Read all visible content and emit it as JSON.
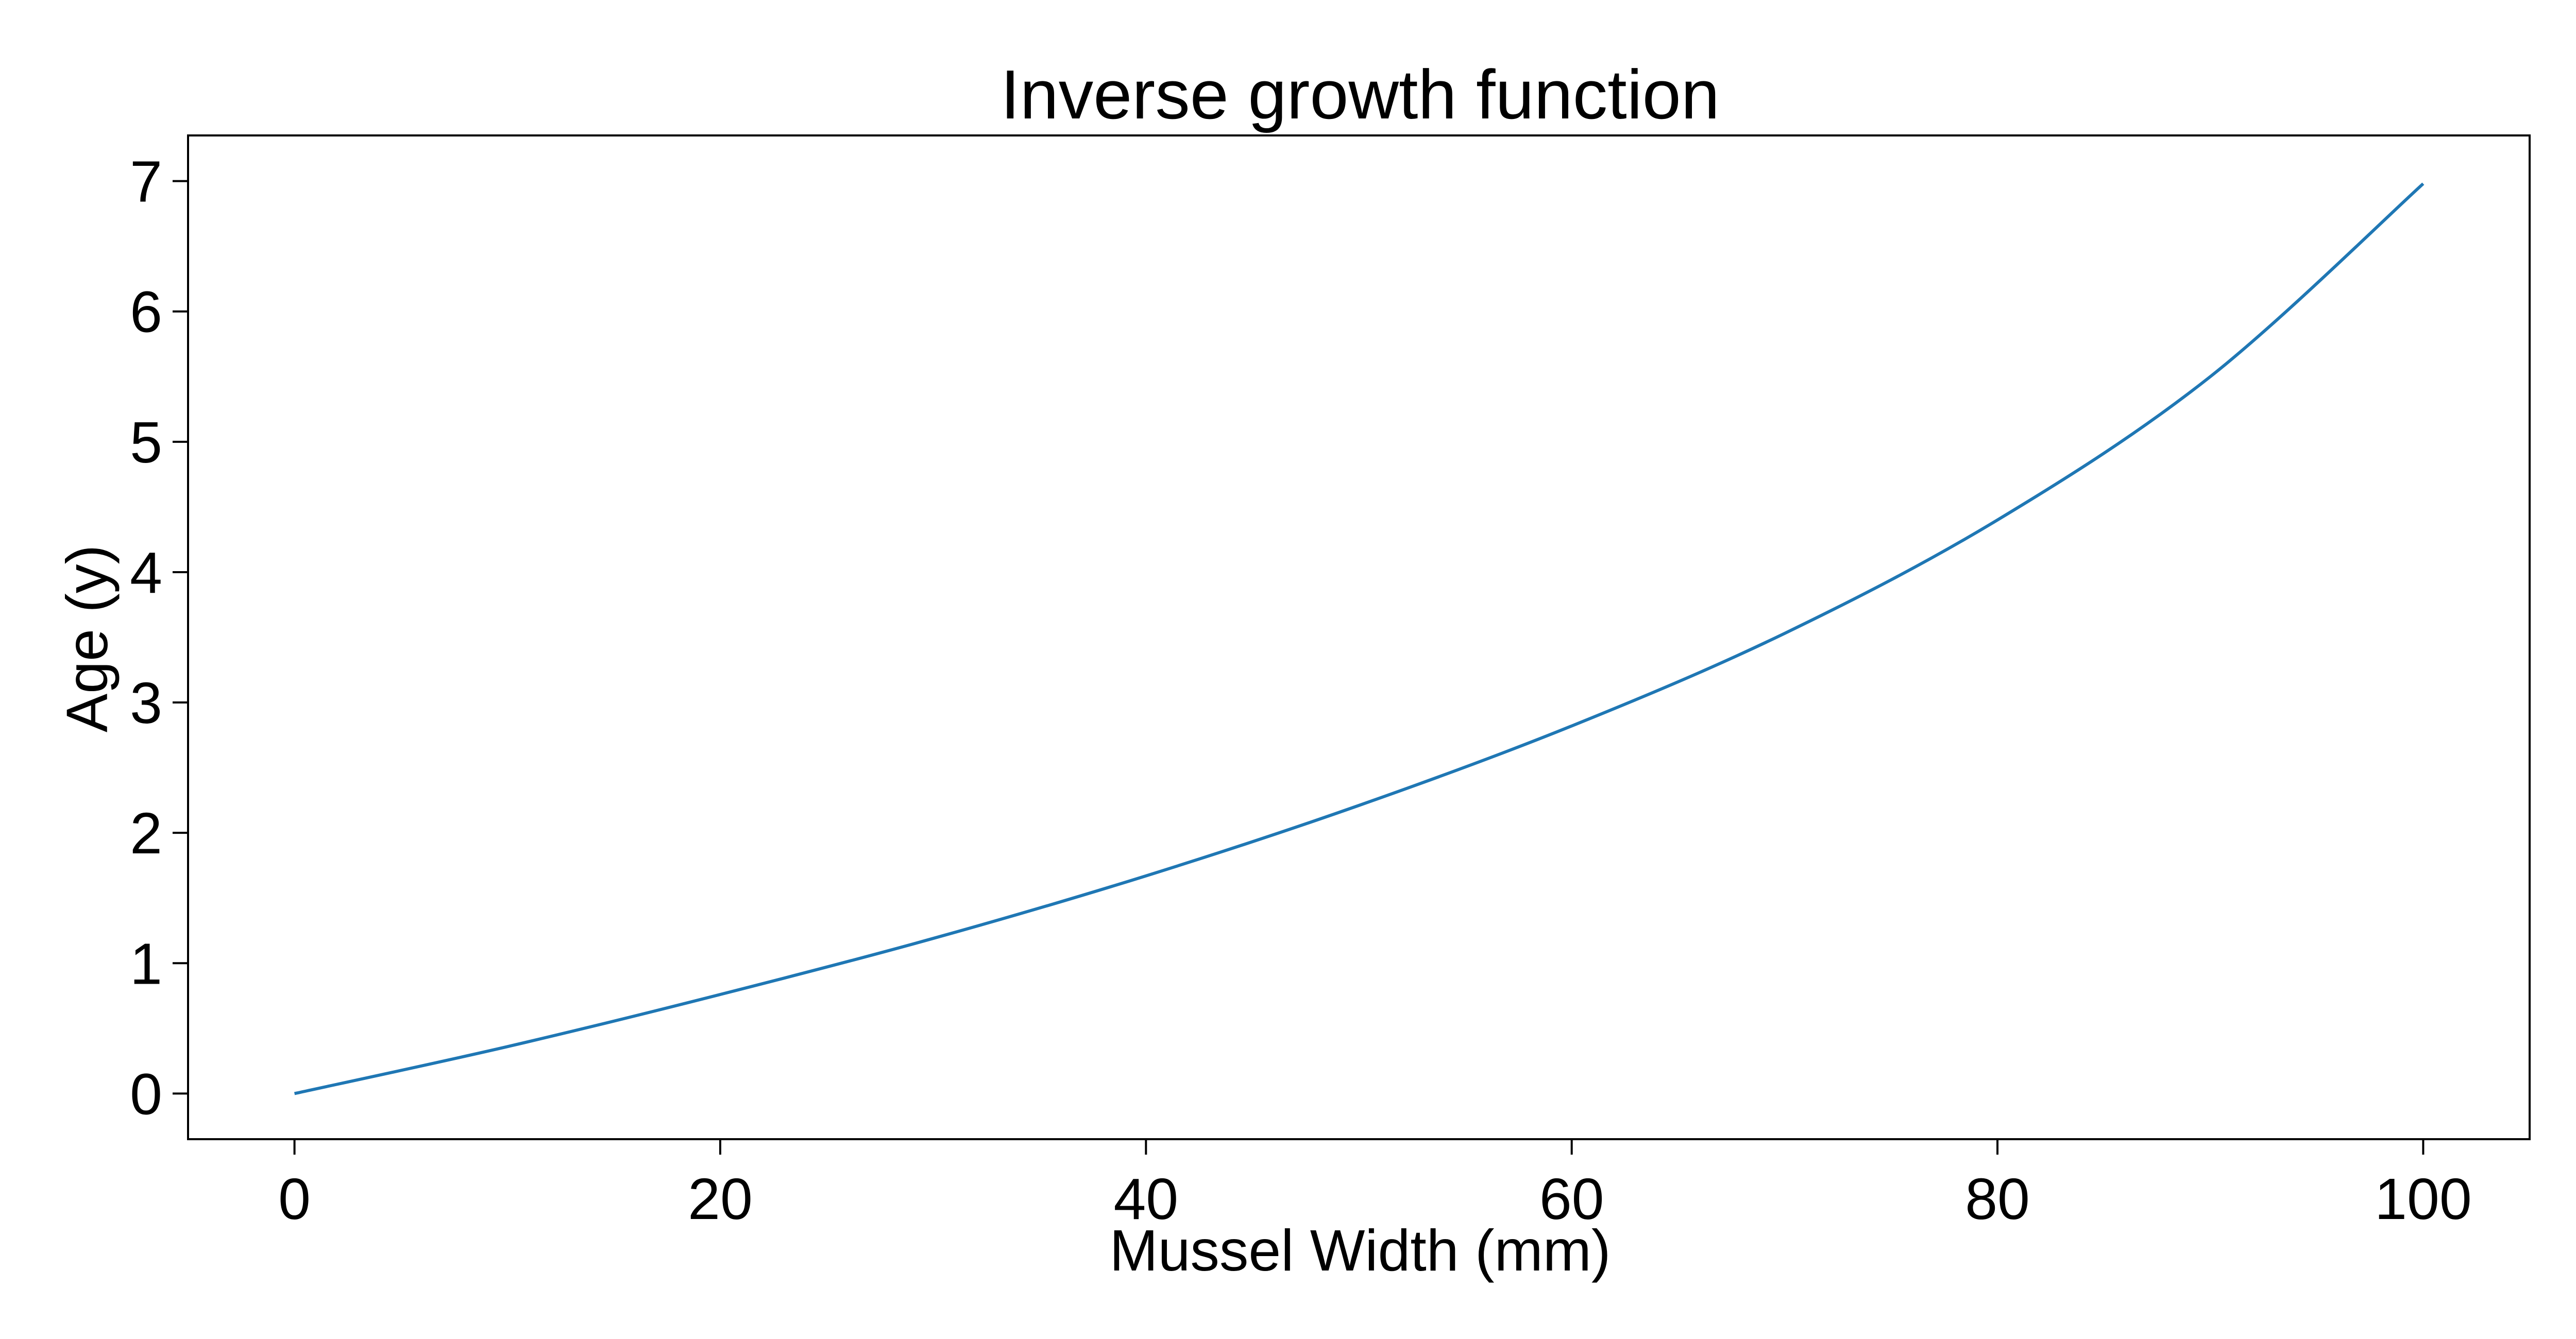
{
  "chart_data": {
    "type": "line",
    "title": "Inverse growth function",
    "xlabel": "Mussel Width (mm)",
    "ylabel": "Age (y)",
    "xlim": [
      -5,
      105
    ],
    "ylim": [
      -0.35,
      7.35
    ],
    "xticks": [
      0,
      20,
      40,
      60,
      80,
      100
    ],
    "yticks": [
      0,
      1,
      2,
      3,
      4,
      5,
      6,
      7
    ],
    "grid": false,
    "legend": "none",
    "series": [
      {
        "color": "#1f77b4",
        "x": [
          0,
          10,
          20,
          30,
          40,
          50,
          60,
          70,
          80,
          90,
          100
        ],
        "y": [
          0,
          0.36,
          0.76,
          1.19,
          1.67,
          2.21,
          2.82,
          3.53,
          4.4,
          5.5,
          6.98
        ]
      }
    ]
  }
}
